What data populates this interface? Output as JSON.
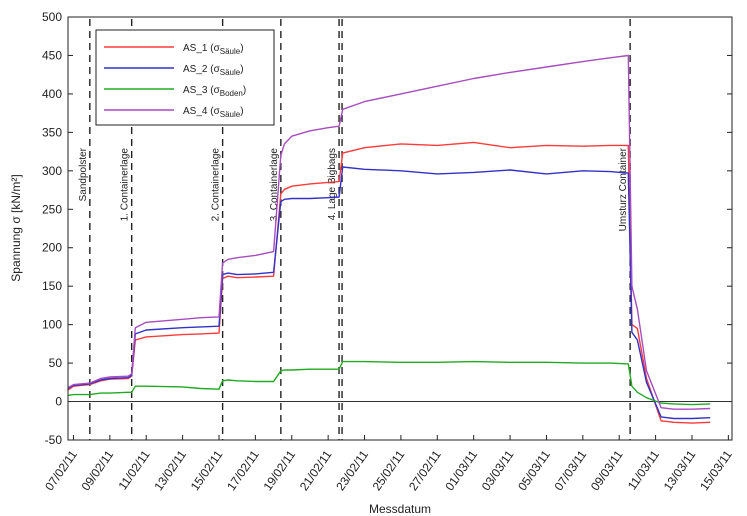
{
  "chart_data": {
    "type": "line",
    "xlabel": "Messdatum",
    "ylabel": "Spannung σ [kN/m²]",
    "ylim": [
      -50,
      500
    ],
    "yticks": [
      -50,
      0,
      50,
      100,
      150,
      200,
      250,
      300,
      350,
      400,
      450,
      500
    ],
    "xticks": [
      "07/02/11",
      "09/02/11",
      "11/02/11",
      "13/02/11",
      "15/02/11",
      "17/02/11",
      "19/02/11",
      "21/02/11",
      "23/02/11",
      "25/02/11",
      "27/02/11",
      "01/03/11",
      "03/03/11",
      "05/03/11",
      "07/03/11",
      "09/03/11",
      "11/03/11",
      "13/03/11",
      "15/03/11"
    ],
    "grid": false,
    "legend_position": "top-left",
    "events": [
      {
        "label": "Sandpolster",
        "x": 7.9
      },
      {
        "label": "1. Containerlage",
        "x": 10.2
      },
      {
        "label": "2. Containerlage",
        "x": 15.2
      },
      {
        "label": "3. Containerlage",
        "x": 18.4
      },
      {
        "label": "4. Lage Bigbags",
        "x": 21.6
      },
      {
        "label": "Umsturz Container",
        "x": 37.6
      }
    ],
    "series": [
      {
        "name": "AS_1 (σSäule)",
        "name_main": "AS_1 (σ",
        "name_sub": "Säule",
        "name_tail": ")",
        "color": "#ff3b3b",
        "x": [
          6.7,
          7.0,
          7.9,
          8.5,
          9.0,
          10.0,
          10.2,
          10.4,
          11,
          13,
          14,
          15.0,
          15.2,
          15.5,
          16,
          17,
          18.0,
          18.4,
          18.6,
          19,
          20,
          21.0,
          21.6,
          21.8,
          23,
          25,
          27,
          29,
          31,
          33,
          35,
          36.5,
          37.5,
          37.7,
          38.0,
          38.5,
          39.3,
          40.0,
          41.0,
          42.0
        ],
        "y": [
          15,
          20,
          22,
          27,
          29,
          30,
          33,
          80,
          84,
          87,
          88,
          89,
          160,
          163,
          161,
          162,
          163,
          270,
          276,
          280,
          283,
          285,
          286,
          323,
          330,
          335,
          333,
          337,
          330,
          333,
          332,
          333,
          333,
          100,
          95,
          30,
          -25,
          -27,
          -28,
          -27
        ]
      },
      {
        "name": "AS_2 (σSäule)",
        "name_main": "AS_2 (σ",
        "name_sub": "Säule",
        "name_tail": ")",
        "color": "#3232c8",
        "x": [
          6.7,
          7.0,
          7.9,
          8.5,
          9.0,
          10.0,
          10.2,
          10.4,
          11,
          13,
          14,
          15.0,
          15.2,
          15.5,
          16,
          17,
          18.0,
          18.4,
          18.6,
          19,
          20,
          21.0,
          21.6,
          21.8,
          23,
          25,
          27,
          29,
          31,
          33,
          35,
          36.5,
          37.5,
          37.7,
          38.0,
          38.5,
          39.3,
          40.0,
          41.0,
          42.0
        ],
        "y": [
          17,
          21,
          23,
          28,
          30,
          31,
          34,
          88,
          93,
          96,
          97,
          98,
          165,
          167,
          165,
          166,
          168,
          260,
          263,
          264,
          264,
          265,
          266,
          305,
          302,
          300,
          296,
          298,
          301,
          296,
          300,
          299,
          297,
          90,
          80,
          25,
          -20,
          -22,
          -22,
          -21
        ]
      },
      {
        "name": "AS_3 (σBoden)",
        "name_main": "AS_3 (σ",
        "name_sub": "Boden",
        "name_tail": ")",
        "color": "#22aa22",
        "x": [
          6.7,
          7.0,
          7.9,
          8.5,
          9.0,
          10.0,
          10.2,
          10.4,
          11,
          13,
          14,
          15.0,
          15.2,
          15.5,
          16,
          17,
          18.0,
          18.4,
          18.6,
          19,
          20,
          21.0,
          21.6,
          21.8,
          23,
          25,
          27,
          29,
          31,
          33,
          35,
          36.5,
          37.5,
          37.7,
          38.0,
          38.5,
          39.3,
          40.0,
          41.0,
          42.0
        ],
        "y": [
          8,
          9,
          9,
          11,
          11,
          12,
          12,
          20,
          20,
          19,
          17,
          16,
          27,
          28,
          27,
          26,
          26,
          40,
          41,
          41,
          42,
          42,
          42,
          52,
          52,
          51,
          51,
          52,
          51,
          51,
          50,
          50,
          49,
          20,
          12,
          5,
          -2,
          -3,
          -4,
          -3
        ]
      },
      {
        "name": "AS_4 (σSäule)",
        "name_main": "AS_4 (σ",
        "name_sub": "Säule",
        "name_tail": ")",
        "color": "#a64dbf",
        "x": [
          6.7,
          7.0,
          7.9,
          8.5,
          9.0,
          10.0,
          10.2,
          10.4,
          11,
          13,
          14,
          15.0,
          15.2,
          15.5,
          16,
          17,
          18.0,
          18.4,
          18.6,
          19,
          20,
          21.0,
          21.6,
          21.8,
          23,
          25,
          27,
          29,
          31,
          33,
          35,
          36.5,
          37.5,
          37.7,
          38.0,
          38.5,
          39.3,
          40.0,
          41.0,
          42.0
        ],
        "y": [
          18,
          22,
          24,
          30,
          32,
          33,
          36,
          96,
          103,
          107,
          109,
          110,
          180,
          185,
          187,
          190,
          195,
          320,
          335,
          345,
          352,
          356,
          358,
          380,
          390,
          400,
          410,
          420,
          428,
          435,
          442,
          447,
          450,
          150,
          120,
          40,
          -8,
          -10,
          -10,
          -9
        ]
      }
    ]
  }
}
